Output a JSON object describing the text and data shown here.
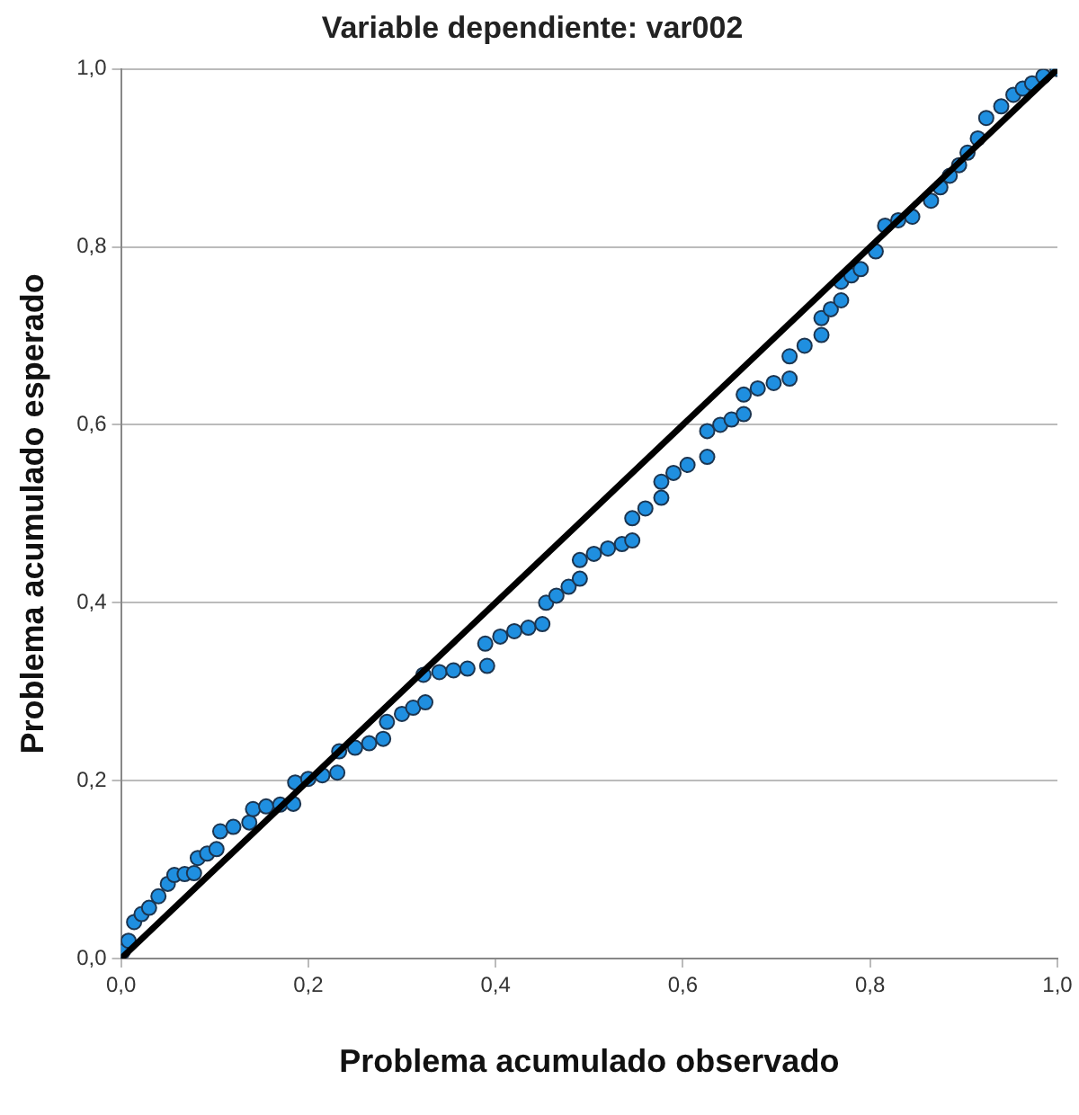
{
  "chart_data": {
    "type": "scatter",
    "title": "Variable dependiente: var002",
    "xlabel": "Problema acumulado observado",
    "ylabel": "Problema acumulado esperado",
    "xlim": [
      0,
      1
    ],
    "ylim": [
      0,
      1
    ],
    "xticks": [
      {
        "value": 0,
        "label": "0,0"
      },
      {
        "value": 0.2,
        "label": "0,2"
      },
      {
        "value": 0.4,
        "label": "0,4"
      },
      {
        "value": 0.6,
        "label": "0,6"
      },
      {
        "value": 0.8,
        "label": "0,8"
      },
      {
        "value": 1,
        "label": "1,0"
      }
    ],
    "yticks": [
      {
        "value": 0,
        "label": "0,0"
      },
      {
        "value": 0.2,
        "label": "0,2"
      },
      {
        "value": 0.4,
        "label": "0,4"
      },
      {
        "value": 0.6,
        "label": "0,6"
      },
      {
        "value": 0.8,
        "label": "0,8"
      },
      {
        "value": 1,
        "label": "1,0"
      }
    ],
    "grid": "y",
    "legend": false,
    "series": [
      {
        "type": "scatter",
        "color": "#1f8fe0",
        "marker": "circle",
        "x": [
          0.002,
          0.008,
          0.014,
          0.022,
          0.03,
          0.04,
          0.05,
          0.057,
          0.068,
          0.078,
          0.082,
          0.092,
          0.102,
          0.106,
          0.12,
          0.137,
          0.141,
          0.155,
          0.17,
          0.184,
          0.186,
          0.2,
          0.215,
          0.231,
          0.233,
          0.25,
          0.265,
          0.28,
          0.284,
          0.3,
          0.312,
          0.325,
          0.323,
          0.34,
          0.355,
          0.37,
          0.391,
          0.389,
          0.405,
          0.42,
          0.435,
          0.45,
          0.454,
          0.465,
          0.478,
          0.49,
          0.49,
          0.505,
          0.52,
          0.535,
          0.546,
          0.546,
          0.56,
          0.577,
          0.577,
          0.59,
          0.605,
          0.626,
          0.626,
          0.64,
          0.652,
          0.665,
          0.665,
          0.68,
          0.697,
          0.714,
          0.714,
          0.73,
          0.748,
          0.748,
          0.758,
          0.769,
          0.769,
          0.78,
          0.79,
          0.806,
          0.816,
          0.83,
          0.845,
          0.865,
          0.875,
          0.885,
          0.895,
          0.904,
          0.915,
          0.924,
          0.94,
          0.953,
          0.963,
          0.973,
          0.985,
          1.0
        ],
        "values": [
          0.008,
          0.02,
          0.041,
          0.05,
          0.057,
          0.07,
          0.084,
          0.094,
          0.095,
          0.096,
          0.113,
          0.118,
          0.123,
          0.143,
          0.148,
          0.153,
          0.168,
          0.171,
          0.173,
          0.174,
          0.198,
          0.202,
          0.206,
          0.209,
          0.233,
          0.237,
          0.242,
          0.247,
          0.266,
          0.275,
          0.282,
          0.288,
          0.319,
          0.322,
          0.324,
          0.326,
          0.329,
          0.354,
          0.362,
          0.368,
          0.372,
          0.376,
          0.4,
          0.408,
          0.418,
          0.427,
          0.448,
          0.455,
          0.461,
          0.466,
          0.47,
          0.495,
          0.506,
          0.518,
          0.536,
          0.546,
          0.555,
          0.564,
          0.593,
          0.6,
          0.606,
          0.612,
          0.634,
          0.641,
          0.647,
          0.652,
          0.677,
          0.689,
          0.701,
          0.72,
          0.73,
          0.74,
          0.761,
          0.768,
          0.775,
          0.795,
          0.824,
          0.83,
          0.834,
          0.852,
          0.867,
          0.88,
          0.892,
          0.906,
          0.922,
          0.945,
          0.958,
          0.971,
          0.978,
          0.984,
          0.992,
          1.0
        ]
      },
      {
        "type": "line",
        "color": "#000000",
        "marker": "none",
        "x": [
          0,
          1
        ],
        "values": [
          0,
          1
        ]
      }
    ]
  }
}
